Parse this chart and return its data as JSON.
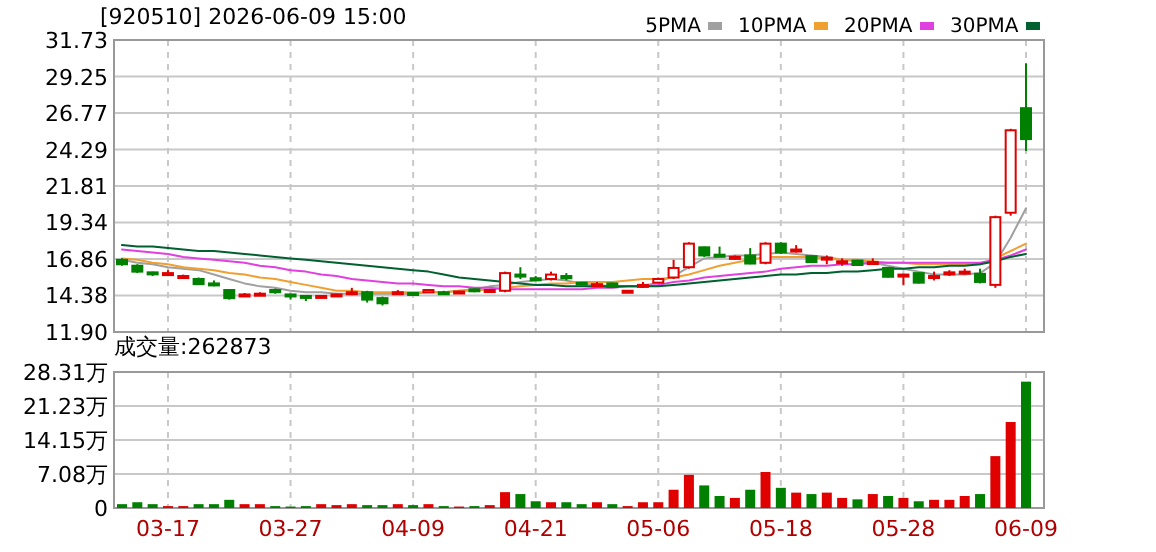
{
  "chart_data": [
    {
      "type": "candlestick",
      "title": "[920510] 2026-06-09 15:00",
      "categories": [
        null,
        null,
        null,
        null,
        null,
        null,
        null,
        null,
        null,
        null,
        null,
        null,
        null,
        null,
        null,
        null,
        null,
        null,
        null,
        null,
        null,
        null,
        null,
        null,
        null,
        null,
        null,
        null,
        null,
        null,
        null,
        null,
        null,
        null,
        null,
        null,
        null,
        null,
        null,
        null,
        null,
        null,
        null,
        null,
        null,
        null,
        null,
        null,
        null,
        null,
        null,
        null,
        null,
        null,
        null,
        null,
        null,
        null,
        null,
        null
      ],
      "ohlc": [
        [
          16.8,
          16.9,
          16.4,
          16.5
        ],
        [
          16.4,
          16.5,
          15.9,
          16.0
        ],
        [
          15.95,
          16.0,
          15.7,
          15.85
        ],
        [
          15.8,
          16.1,
          15.7,
          15.9
        ],
        [
          15.6,
          15.8,
          15.5,
          15.7
        ],
        [
          15.5,
          15.6,
          15.1,
          15.15
        ],
        [
          15.2,
          15.4,
          15.0,
          15.15
        ],
        [
          14.75,
          14.8,
          14.1,
          14.2
        ],
        [
          14.35,
          14.55,
          14.3,
          14.45
        ],
        [
          14.45,
          14.6,
          14.4,
          14.5
        ],
        [
          14.75,
          14.85,
          14.5,
          14.6
        ],
        [
          14.45,
          14.5,
          14.1,
          14.4
        ],
        [
          14.35,
          14.4,
          14.0,
          14.3
        ],
        [
          14.3,
          14.4,
          14.2,
          14.35
        ],
        [
          14.4,
          14.5,
          14.3,
          14.45
        ],
        [
          14.5,
          14.9,
          14.4,
          14.6
        ],
        [
          14.6,
          14.7,
          13.9,
          14.1
        ],
        [
          14.2,
          14.3,
          13.7,
          13.85
        ],
        [
          14.55,
          14.75,
          14.5,
          14.6
        ],
        [
          14.55,
          14.6,
          14.4,
          14.45
        ],
        [
          14.6,
          14.8,
          14.55,
          14.75
        ],
        [
          14.6,
          14.7,
          14.5,
          14.55
        ],
        [
          14.55,
          14.7,
          14.5,
          14.65
        ],
        [
          14.8,
          14.85,
          14.6,
          14.7
        ],
        [
          14.65,
          14.8,
          14.6,
          14.75
        ],
        [
          14.7,
          16.0,
          14.6,
          15.9
        ],
        [
          15.8,
          16.3,
          15.5,
          15.75
        ],
        [
          15.55,
          15.7,
          15.4,
          15.45
        ],
        [
          15.5,
          16.0,
          15.4,
          15.8
        ],
        [
          15.7,
          15.9,
          15.4,
          15.55
        ],
        [
          15.25,
          15.3,
          15.1,
          15.15
        ],
        [
          15.05,
          15.3,
          15.0,
          15.15
        ],
        [
          15.2,
          15.25,
          14.9,
          14.95
        ],
        [
          14.6,
          14.75,
          14.55,
          14.7
        ],
        [
          15.0,
          15.3,
          14.9,
          15.1
        ],
        [
          15.25,
          15.6,
          15.2,
          15.5
        ],
        [
          15.6,
          16.8,
          15.5,
          16.25
        ],
        [
          16.3,
          18.0,
          16.2,
          17.9
        ],
        [
          17.65,
          17.7,
          17.0,
          17.1
        ],
        [
          17.15,
          17.7,
          17.0,
          17.1
        ],
        [
          16.9,
          17.1,
          16.8,
          17.0
        ],
        [
          17.1,
          17.6,
          16.5,
          16.55
        ],
        [
          16.6,
          18.0,
          16.5,
          17.9
        ],
        [
          17.9,
          18.0,
          17.2,
          17.3
        ],
        [
          17.4,
          17.8,
          17.3,
          17.5
        ],
        [
          17.05,
          17.1,
          16.6,
          16.65
        ],
        [
          16.9,
          17.1,
          16.5,
          16.95
        ],
        [
          16.6,
          16.9,
          16.4,
          16.7
        ],
        [
          16.75,
          16.8,
          16.4,
          16.45
        ],
        [
          16.6,
          16.9,
          16.5,
          16.65
        ],
        [
          16.25,
          16.3,
          15.6,
          15.65
        ],
        [
          15.75,
          15.85,
          15.1,
          15.8
        ],
        [
          15.9,
          15.95,
          15.2,
          15.25
        ],
        [
          15.65,
          16.0,
          15.4,
          15.7
        ],
        [
          15.9,
          16.1,
          15.7,
          15.95
        ],
        [
          15.9,
          16.2,
          15.8,
          16.0
        ],
        [
          15.85,
          16.2,
          15.2,
          15.3
        ],
        [
          15.1,
          19.8,
          14.9,
          19.7
        ],
        [
          20.0,
          25.7,
          19.8,
          25.6
        ],
        [
          27.1,
          30.15,
          24.2,
          25.0
        ]
      ],
      "colors": [
        "#008000",
        "#008000",
        "#008000",
        "#e00000",
        "#e00000",
        "#008000",
        "#008000",
        "#008000",
        "#e00000",
        "#e00000",
        "#008000",
        "#008000",
        "#008000",
        "#e00000",
        "#e00000",
        "#e00000",
        "#008000",
        "#008000",
        "#e00000",
        "#008000",
        "#e00000",
        "#008000",
        "#e00000",
        "#008000",
        "#e00000",
        "#e00000",
        "#008000",
        "#008000",
        "#e00000",
        "#008000",
        "#008000",
        "#e00000",
        "#008000",
        "#e00000",
        "#e00000",
        "#e00000",
        "#e00000",
        "#e00000",
        "#008000",
        "#008000",
        "#e00000",
        "#008000",
        "#e00000",
        "#008000",
        "#e00000",
        "#008000",
        "#e00000",
        "#e00000",
        "#008000",
        "#e00000",
        "#008000",
        "#e00000",
        "#008000",
        "#e00000",
        "#e00000",
        "#e00000",
        "#008000",
        "#e00000",
        "#e00000",
        "#008000"
      ],
      "series": [
        {
          "name": "5PMA",
          "type": "line",
          "color": "#a0a0a0",
          "values": [
            16.8,
            16.6,
            16.5,
            16.3,
            16.2,
            16.1,
            15.8,
            15.5,
            15.2,
            15.0,
            14.9,
            14.7,
            14.6,
            14.6,
            14.5,
            14.5,
            14.5,
            14.5,
            14.5,
            14.5,
            14.6,
            14.6,
            14.7,
            14.8,
            15.0,
            15.1,
            15.3,
            15.4,
            15.5,
            15.4,
            15.2,
            15.1,
            15.0,
            15.0,
            15.0,
            15.3,
            15.7,
            16.3,
            16.9,
            17.0,
            17.1,
            17.1,
            17.2,
            17.3,
            17.2,
            17.1,
            17.0,
            16.8,
            16.7,
            16.6,
            16.4,
            16.2,
            16.0,
            15.8,
            15.8,
            15.8,
            15.9,
            16.6,
            18.3,
            20.3
          ]
        },
        {
          "name": "10PMA",
          "type": "line",
          "color": "#f0a030",
          "values": [
            16.9,
            16.8,
            16.6,
            16.5,
            16.3,
            16.2,
            16.1,
            15.9,
            15.8,
            15.6,
            15.5,
            15.3,
            15.1,
            14.9,
            14.7,
            14.7,
            14.6,
            14.6,
            14.6,
            14.6,
            14.6,
            14.6,
            14.7,
            14.7,
            14.8,
            14.9,
            15.0,
            15.1,
            15.2,
            15.2,
            15.3,
            15.3,
            15.3,
            15.4,
            15.5,
            15.5,
            15.6,
            15.8,
            16.1,
            16.4,
            16.6,
            16.8,
            17.0,
            17.0,
            17.0,
            17.0,
            16.9,
            16.8,
            16.8,
            16.7,
            16.6,
            16.6,
            16.5,
            16.5,
            16.5,
            16.5,
            16.5,
            16.9,
            17.4,
            17.9
          ]
        },
        {
          "name": "20PMA",
          "type": "line",
          "color": "#e040e0",
          "values": [
            17.5,
            17.4,
            17.3,
            17.2,
            17.0,
            16.9,
            16.8,
            16.7,
            16.6,
            16.4,
            16.3,
            16.1,
            16.0,
            15.8,
            15.7,
            15.5,
            15.4,
            15.3,
            15.2,
            15.2,
            15.1,
            15.0,
            15.0,
            14.9,
            14.9,
            14.8,
            14.8,
            14.8,
            14.8,
            14.8,
            14.8,
            14.9,
            14.9,
            15.0,
            15.0,
            15.1,
            15.3,
            15.4,
            15.6,
            15.7,
            15.8,
            15.9,
            16.0,
            16.2,
            16.3,
            16.4,
            16.4,
            16.5,
            16.5,
            16.6,
            16.6,
            16.6,
            16.6,
            16.6,
            16.6,
            16.6,
            16.6,
            16.8,
            17.1,
            17.5
          ]
        },
        {
          "name": "30PMA",
          "type": "line",
          "color": "#006030",
          "values": [
            17.8,
            17.7,
            17.7,
            17.6,
            17.5,
            17.4,
            17.4,
            17.3,
            17.2,
            17.1,
            17.0,
            16.9,
            16.8,
            16.7,
            16.6,
            16.5,
            16.4,
            16.3,
            16.2,
            16.1,
            16.0,
            15.8,
            15.6,
            15.5,
            15.4,
            15.3,
            15.2,
            15.1,
            15.1,
            15.0,
            15.0,
            15.0,
            15.0,
            15.0,
            15.0,
            15.0,
            15.1,
            15.2,
            15.3,
            15.4,
            15.5,
            15.6,
            15.7,
            15.8,
            15.8,
            15.9,
            15.9,
            16.0,
            16.0,
            16.1,
            16.2,
            16.2,
            16.3,
            16.3,
            16.4,
            16.4,
            16.5,
            16.7,
            17.0,
            17.2
          ]
        }
      ],
      "ylim": [
        11.9,
        31.73
      ],
      "yticks": [
        {
          "value": 11.9,
          "label": "11.90"
        },
        {
          "value": 14.38,
          "label": "14.38"
        },
        {
          "value": 16.86,
          "label": "16.86"
        },
        {
          "value": 19.34,
          "label": "19.34"
        },
        {
          "value": 21.81,
          "label": "21.81"
        },
        {
          "value": 24.29,
          "label": "24.29"
        },
        {
          "value": 26.77,
          "label": "26.77"
        },
        {
          "value": 29.25,
          "label": "29.25"
        },
        {
          "value": 31.73,
          "label": "31.73"
        }
      ],
      "grid": true,
      "legend": "top right",
      "tick_labels": "y"
    },
    {
      "type": "bar",
      "title": "成交量:262873",
      "categories": [
        null,
        null,
        null,
        "03-17",
        null,
        null,
        null,
        null,
        null,
        null,
        null,
        "03-27",
        null,
        null,
        null,
        null,
        null,
        null,
        null,
        "04-09",
        null,
        null,
        null,
        null,
        null,
        null,
        null,
        "04-21",
        null,
        null,
        null,
        null,
        null,
        null,
        null,
        "05-06",
        null,
        null,
        null,
        null,
        null,
        null,
        null,
        "05-18",
        null,
        null,
        null,
        null,
        null,
        null,
        null,
        "05-28",
        null,
        null,
        null,
        null,
        null,
        null,
        null,
        "06-09"
      ],
      "values": [
        0.8,
        1.2,
        0.8,
        0.4,
        0.4,
        0.8,
        0.8,
        1.7,
        0.8,
        0.8,
        0.4,
        0.3,
        0.4,
        0.8,
        0.6,
        0.8,
        0.6,
        0.6,
        0.8,
        0.6,
        0.8,
        0.4,
        0.3,
        0.4,
        0.6,
        3.3,
        2.9,
        1.4,
        1.2,
        1.2,
        0.8,
        1.2,
        0.8,
        0.4,
        1.2,
        1.2,
        3.8,
        6.9,
        4.7,
        2.5,
        2.1,
        3.8,
        7.5,
        4.2,
        3.2,
        2.9,
        3.2,
        2.1,
        1.8,
        2.9,
        2.5,
        2.1,
        1.4,
        1.7,
        1.7,
        2.5,
        2.9,
        10.8,
        17.9,
        26.3
      ],
      "colors": [
        "#008000",
        "#008000",
        "#008000",
        "#e00000",
        "#e00000",
        "#008000",
        "#008000",
        "#008000",
        "#e00000",
        "#e00000",
        "#008000",
        "#008000",
        "#008000",
        "#e00000",
        "#e00000",
        "#e00000",
        "#008000",
        "#008000",
        "#e00000",
        "#008000",
        "#e00000",
        "#008000",
        "#e00000",
        "#008000",
        "#e00000",
        "#e00000",
        "#008000",
        "#008000",
        "#e00000",
        "#008000",
        "#008000",
        "#e00000",
        "#008000",
        "#e00000",
        "#e00000",
        "#e00000",
        "#e00000",
        "#e00000",
        "#008000",
        "#008000",
        "#e00000",
        "#008000",
        "#e00000",
        "#008000",
        "#e00000",
        "#008000",
        "#e00000",
        "#e00000",
        "#008000",
        "#e00000",
        "#008000",
        "#e00000",
        "#008000",
        "#e00000",
        "#e00000",
        "#e00000",
        "#008000",
        "#e00000",
        "#e00000",
        "#008000"
      ],
      "ylim": [
        0,
        28.31
      ],
      "yticks": [
        0,
        {
          "value": 7.08,
          "label": "7.08万"
        },
        {
          "value": 14.15,
          "label": "14.15万"
        },
        {
          "value": 21.23,
          "label": "21.23万"
        },
        {
          "value": 28.31,
          "label": "28.31万"
        }
      ],
      "grid": true
    }
  ]
}
